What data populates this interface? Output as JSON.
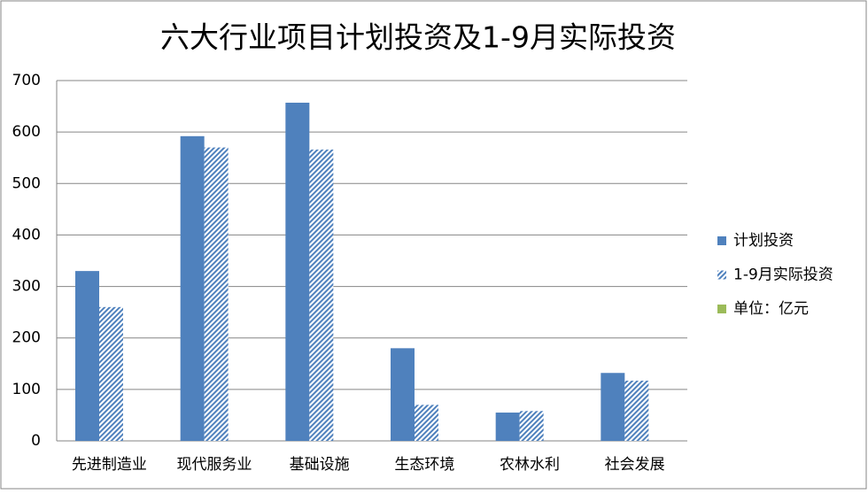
{
  "chart_data": {
    "type": "bar",
    "title": "六大行业项目计划投资及1-9月实际投资",
    "categories": [
      "先进制造业",
      "现代服务业",
      "基础设施",
      "生态环境",
      "农林水利",
      "社会发展"
    ],
    "series": [
      {
        "name": "计划投资",
        "color": "#4f81bd",
        "hatch": false,
        "values": [
          330,
          592,
          657,
          180,
          55,
          132
        ]
      },
      {
        "name": "1-9月实际投资",
        "color": "#4f81bd",
        "hatch": true,
        "values": [
          260,
          570,
          566,
          70,
          58,
          117
        ]
      },
      {
        "name": "单位：亿元",
        "color": "#9bbb59",
        "hatch": false,
        "values": [
          null,
          null,
          null,
          null,
          null,
          null
        ]
      }
    ],
    "ylim": [
      0,
      700
    ],
    "yticks": [
      0,
      100,
      200,
      300,
      400,
      500,
      600,
      700
    ],
    "grid": true,
    "legend": "right"
  }
}
